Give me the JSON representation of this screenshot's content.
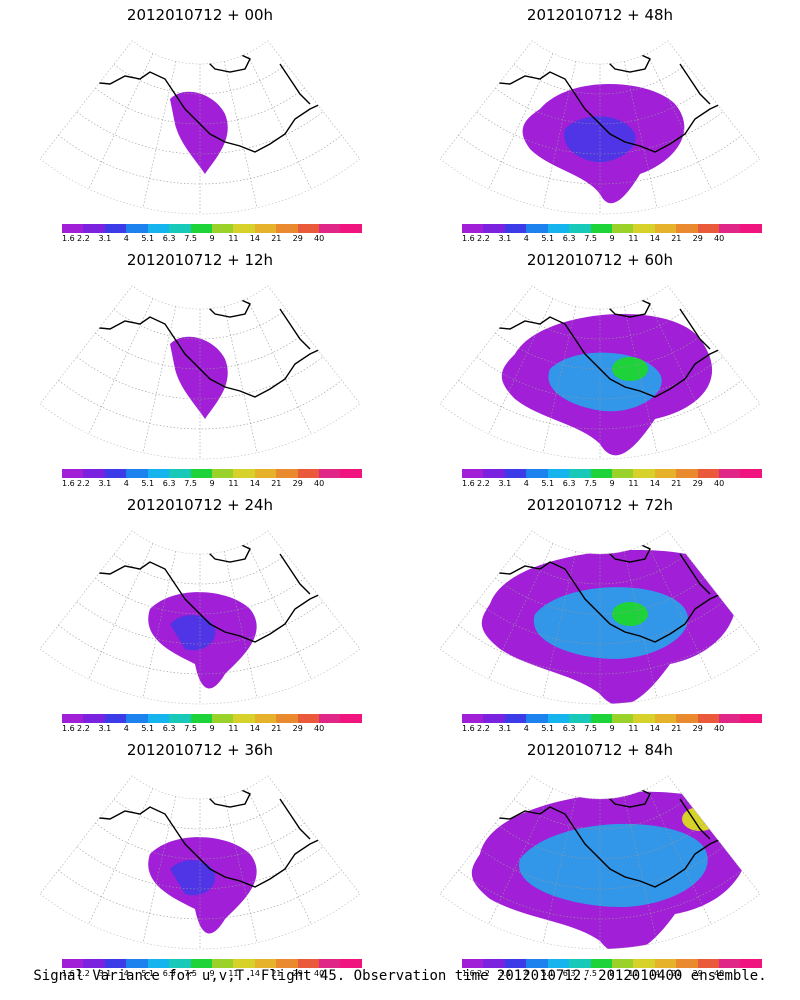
{
  "caption": "Signal Variance for u,v,T. Flight 45. Observation time 2012010712. 2012010400 ensemble.",
  "colorbar": {
    "labels": [
      "1.6",
      "2.2",
      "3.1",
      "4",
      "5.1",
      "6.3",
      "7.5",
      "9",
      "11",
      "14",
      "21",
      "29",
      "40"
    ],
    "colors": [
      "#a11fd6",
      "#7a22e0",
      "#3b3be8",
      "#1e82ee",
      "#16b4ee",
      "#18c8b8",
      "#1ed23a",
      "#9ad22a",
      "#d6d22a",
      "#e6b22c",
      "#ea8a2e",
      "#ea5a3a",
      "#e02686",
      "#f0147e"
    ]
  },
  "panels": [
    {
      "title": "2012010712 + 00h",
      "intensity": 0
    },
    {
      "title": "2012010712 + 48h",
      "intensity": 2
    },
    {
      "title": "2012010712 + 12h",
      "intensity": 0
    },
    {
      "title": "2012010712 + 60h",
      "intensity": 3
    },
    {
      "title": "2012010712 + 24h",
      "intensity": 1
    },
    {
      "title": "2012010712 + 72h",
      "intensity": 4
    },
    {
      "title": "2012010712 + 36h",
      "intensity": 1
    },
    {
      "title": "2012010712 + 84h",
      "intensity": 5
    }
  ]
}
